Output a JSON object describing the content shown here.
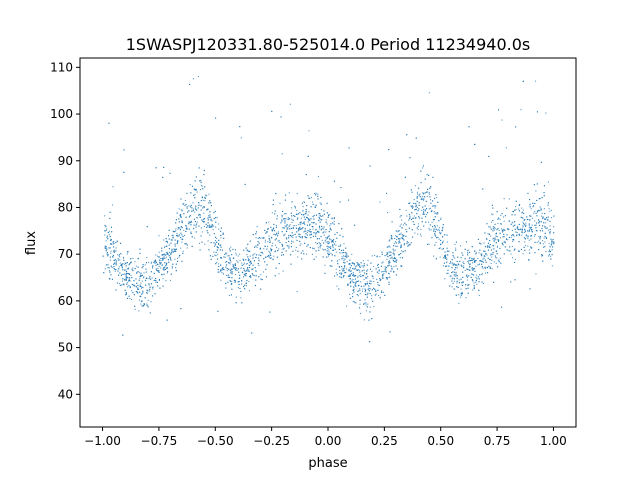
{
  "chart_data": {
    "type": "scatter",
    "title": "1SWASPJ120331.80-525014.0 Period 11234940.0s",
    "xlabel": "phase",
    "ylabel": "flux",
    "xlim": [
      -1.1,
      1.1
    ],
    "ylim": [
      33,
      112
    ],
    "xticks": [
      -1.0,
      -0.75,
      -0.5,
      -0.25,
      0.0,
      0.25,
      0.5,
      0.75,
      1.0
    ],
    "xtick_labels": [
      "−1.00",
      "−0.75",
      "−0.50",
      "−0.25",
      "0.00",
      "0.25",
      "0.50",
      "0.75",
      "1.00"
    ],
    "yticks": [
      40,
      50,
      60,
      70,
      80,
      90,
      100,
      110
    ],
    "ytick_labels": [
      "40",
      "50",
      "60",
      "70",
      "80",
      "90",
      "100",
      "110"
    ],
    "grid": false,
    "legend": "none",
    "marker_color": "#1f77b4",
    "phase_range": [
      -1.0,
      1.0
    ],
    "profile": {
      "phase": [
        0.0,
        0.03,
        0.06,
        0.1,
        0.14,
        0.18,
        0.22,
        0.26,
        0.3,
        0.34,
        0.38,
        0.42,
        0.45,
        0.48,
        0.52,
        0.56,
        0.6,
        0.64,
        0.68,
        0.72,
        0.76,
        0.8,
        0.84,
        0.88,
        0.92,
        0.96,
        1.0
      ],
      "mean_flux": [
        73,
        71,
        68,
        66,
        64,
        63,
        65,
        68,
        71,
        75,
        78,
        81,
        80,
        76,
        70,
        67,
        66,
        67,
        69,
        72,
        74,
        75,
        76,
        76,
        77,
        76,
        73
      ],
      "scatter": [
        6,
        6,
        5,
        5,
        5,
        5,
        5,
        5,
        5,
        6,
        6,
        7,
        7,
        6,
        5,
        5,
        5,
        5,
        5,
        6,
        6,
        6,
        6,
        6,
        7,
        7,
        6
      ]
    }
  }
}
